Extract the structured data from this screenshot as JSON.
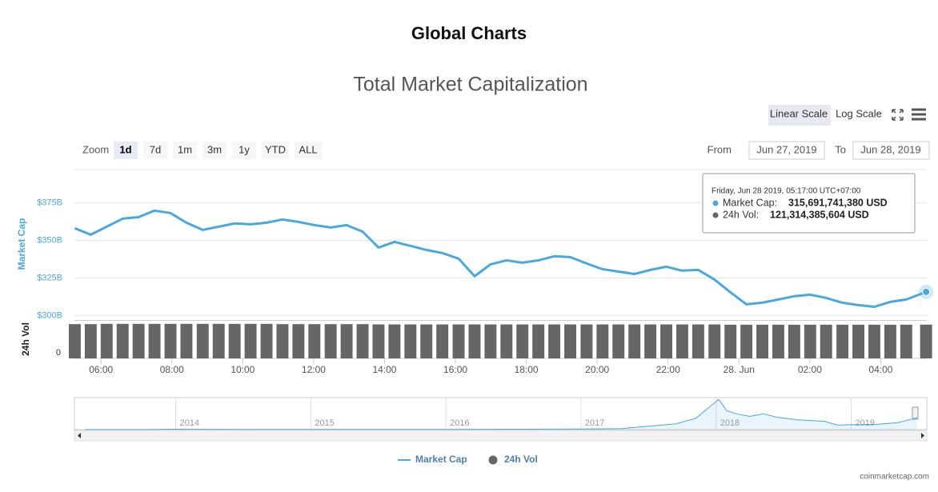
{
  "header": {
    "title": "Global Charts"
  },
  "chart_data": {
    "type": "line",
    "title": "Total Market Capitalization",
    "scale_buttons": [
      "Linear Scale",
      "Log Scale"
    ],
    "log_scale": false,
    "zoom": {
      "label": "Zoom",
      "buttons": [
        "1d",
        "7d",
        "1m",
        "3m",
        "1y",
        "YTD",
        "ALL"
      ],
      "selected": 0
    },
    "range": {
      "from_label": "From",
      "from": "Jun 27, 2019",
      "to_label": "To",
      "to": "Jun 28, 2019"
    },
    "ylabel": "Market Cap",
    "y2label": "24h Vol",
    "x": [
      5.26,
      5.71,
      6.16,
      6.61,
      7.06,
      7.51,
      7.96,
      8.41,
      8.87,
      9.32,
      9.77,
      10.22,
      10.67,
      11.12,
      11.57,
      12.02,
      12.48,
      12.93,
      13.38,
      13.83,
      14.28,
      14.73,
      15.18,
      15.63,
      16.09,
      16.54,
      16.99,
      17.44,
      17.89,
      18.34,
      18.79,
      19.24,
      19.7,
      20.15,
      20.6,
      21.05,
      21.5,
      21.95,
      22.4,
      22.85,
      23.31,
      23.76,
      24.21,
      24.66,
      25.11,
      25.56,
      26.01,
      26.46,
      26.92,
      27.37,
      27.82,
      28.27,
      28.72,
      29.28
    ],
    "xlim": [
      5.25,
      29.3
    ],
    "xticks": [
      {
        "value": 6,
        "label": "06:00"
      },
      {
        "value": 8,
        "label": "08:00"
      },
      {
        "value": 10,
        "label": "10:00"
      },
      {
        "value": 12,
        "label": "12:00"
      },
      {
        "value": 14,
        "label": "14:00"
      },
      {
        "value": 16,
        "label": "16:00"
      },
      {
        "value": 18,
        "label": "18:00"
      },
      {
        "value": 20,
        "label": "20:00"
      },
      {
        "value": 22,
        "label": "22:00"
      },
      {
        "value": 24,
        "label": "28. Jun"
      },
      {
        "value": 26,
        "label": "02:00"
      },
      {
        "value": 28,
        "label": "04:00"
      }
    ],
    "ylim": [
      297,
      397
    ],
    "yticks": [
      {
        "value": 300,
        "label": "$300B"
      },
      {
        "value": 325,
        "label": "$325B"
      },
      {
        "value": 350,
        "label": "$350B"
      },
      {
        "value": 375,
        "label": "$375B"
      }
    ],
    "y2lim": [
      0,
      135
    ],
    "y2ticks": [
      0
    ],
    "grid": true,
    "series": [
      {
        "name": "Market Cap",
        "color": "#4aa8e0",
        "values": [
          358.0,
          353.7,
          359.0,
          364.4,
          365.4,
          369.7,
          368.1,
          361.7,
          356.9,
          359.0,
          361.2,
          360.6,
          361.7,
          363.8,
          362.2,
          360.1,
          358.5,
          360.1,
          355.8,
          345.2,
          348.9,
          346.3,
          343.6,
          341.5,
          337.8,
          326.1,
          334.0,
          336.7,
          335.1,
          336.7,
          339.4,
          338.8,
          334.6,
          330.8,
          329.2,
          327.6,
          330.3,
          332.4,
          329.8,
          330.3,
          323.9,
          315.4,
          307.4,
          308.5,
          310.6,
          312.8,
          313.8,
          311.7,
          308.5,
          306.9,
          305.8,
          309.0,
          310.6,
          315.69
        ]
      },
      {
        "name": "24h Vol",
        "color": "#666666",
        "axis": "y2",
        "values": [
          123,
          123,
          124,
          124,
          124,
          124,
          124,
          124,
          124,
          124,
          124,
          124,
          124,
          123,
          123,
          123,
          123,
          123,
          123,
          122,
          122,
          122,
          122,
          122,
          122,
          122,
          122,
          122,
          122,
          122,
          122,
          122,
          122,
          122,
          122,
          122,
          122,
          122,
          122,
          122,
          122,
          121,
          121,
          121,
          121,
          121,
          121,
          121,
          121,
          121,
          121,
          121,
          121,
          121.31
        ]
      }
    ],
    "tooltip": {
      "date": "Friday, Jun 28 2019, 05:17:00 UTC+07:00",
      "items": [
        {
          "label": "Market Cap:",
          "value": "315,691,741,380 USD"
        },
        {
          "label": "24h Vol:",
          "value": "121,314,385,604 USD"
        }
      ]
    },
    "navigator": {
      "x": [
        2013.33,
        2013.8,
        2013.95,
        2014.2,
        2014.6,
        2015.0,
        2015.5,
        2016.0,
        2016.5,
        2017.0,
        2017.3,
        2017.5,
        2017.7,
        2017.85,
        2017.95,
        2018.02,
        2018.08,
        2018.15,
        2018.25,
        2018.35,
        2018.45,
        2018.6,
        2018.8,
        2018.9,
        2019.0,
        2019.2,
        2019.35,
        2019.45,
        2019.49
      ],
      "values": [
        2,
        3,
        10,
        9,
        7,
        5,
        4,
        7,
        10,
        17,
        28,
        90,
        150,
        300,
        600,
        800,
        500,
        420,
        350,
        420,
        330,
        260,
        220,
        120,
        130,
        140,
        190,
        280,
        316
      ],
      "xlim": [
        2013.25,
        2019.56
      ],
      "xticks": [
        2014,
        2015,
        2016,
        2017,
        2018,
        2019
      ],
      "ylim": [
        0,
        850
      ]
    },
    "credit": "coinmarketcap.com"
  }
}
